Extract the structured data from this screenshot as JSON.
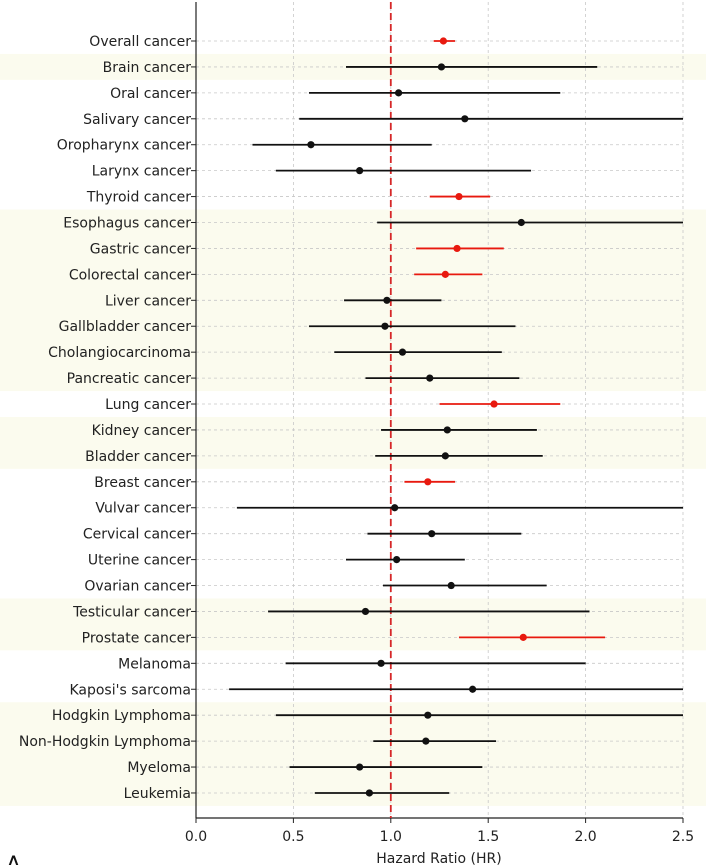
{
  "chart_data": {
    "type": "forest",
    "xlabel": "Hazard Ratio (HR)",
    "panel_label": "A",
    "xlim": [
      0.0,
      2.5
    ],
    "xticks": [
      0.0,
      0.5,
      1.0,
      1.5,
      2.0,
      2.5
    ],
    "xtick_labels": [
      "0.0",
      "0.5",
      "1.0",
      "1.5",
      "2.0",
      "2.5"
    ],
    "reference_line": 1.0,
    "grid": true,
    "colors": {
      "significant": "#e8190f",
      "nonsignificant": "#111111",
      "reference": "#d62728",
      "band": "#fbfbee",
      "grid": "#c8c8c8"
    },
    "rows": [
      {
        "label": "Overall cancer",
        "hr": 1.27,
        "lo": 1.22,
        "hi": 1.33,
        "significant": true
      },
      {
        "label": "Brain cancer",
        "hr": 1.26,
        "lo": 0.77,
        "hi": 2.06,
        "significant": false
      },
      {
        "label": "Oral cancer",
        "hr": 1.04,
        "lo": 0.58,
        "hi": 1.87,
        "significant": false
      },
      {
        "label": "Salivary cancer",
        "hr": 1.38,
        "lo": 0.53,
        "hi": 2.5,
        "significant": false
      },
      {
        "label": "Oropharynx cancer",
        "hr": 0.59,
        "lo": 0.29,
        "hi": 1.21,
        "significant": false
      },
      {
        "label": "Larynx cancer",
        "hr": 0.84,
        "lo": 0.41,
        "hi": 1.72,
        "significant": false
      },
      {
        "label": "Thyroid cancer",
        "hr": 1.35,
        "lo": 1.2,
        "hi": 1.51,
        "significant": true
      },
      {
        "label": "Esophagus cancer",
        "hr": 1.67,
        "lo": 0.93,
        "hi": 2.5,
        "significant": false
      },
      {
        "label": "Gastric cancer",
        "hr": 1.34,
        "lo": 1.13,
        "hi": 1.58,
        "significant": true
      },
      {
        "label": "Colorectal cancer",
        "hr": 1.28,
        "lo": 1.12,
        "hi": 1.47,
        "significant": true
      },
      {
        "label": "Liver cancer",
        "hr": 0.98,
        "lo": 0.76,
        "hi": 1.26,
        "significant": false
      },
      {
        "label": "Gallbladder cancer",
        "hr": 0.97,
        "lo": 0.58,
        "hi": 1.64,
        "significant": false
      },
      {
        "label": "Cholangiocarcinoma",
        "hr": 1.06,
        "lo": 0.71,
        "hi": 1.57,
        "significant": false
      },
      {
        "label": "Pancreatic cancer",
        "hr": 1.2,
        "lo": 0.87,
        "hi": 1.66,
        "significant": false
      },
      {
        "label": "Lung cancer",
        "hr": 1.53,
        "lo": 1.25,
        "hi": 1.87,
        "significant": true
      },
      {
        "label": "Kidney cancer",
        "hr": 1.29,
        "lo": 0.95,
        "hi": 1.75,
        "significant": false
      },
      {
        "label": "Bladder cancer",
        "hr": 1.28,
        "lo": 0.92,
        "hi": 1.78,
        "significant": false
      },
      {
        "label": "Breast cancer",
        "hr": 1.19,
        "lo": 1.07,
        "hi": 1.33,
        "significant": true
      },
      {
        "label": "Vulvar cancer",
        "hr": 1.02,
        "lo": 0.21,
        "hi": 2.5,
        "significant": false
      },
      {
        "label": "Cervical cancer",
        "hr": 1.21,
        "lo": 0.88,
        "hi": 1.67,
        "significant": false
      },
      {
        "label": "Uterine cancer",
        "hr": 1.03,
        "lo": 0.77,
        "hi": 1.38,
        "significant": false
      },
      {
        "label": "Ovarian cancer",
        "hr": 1.31,
        "lo": 0.96,
        "hi": 1.8,
        "significant": false
      },
      {
        "label": "Testicular cancer",
        "hr": 0.87,
        "lo": 0.37,
        "hi": 2.02,
        "significant": false
      },
      {
        "label": "Prostate cancer",
        "hr": 1.68,
        "lo": 1.35,
        "hi": 2.1,
        "significant": true
      },
      {
        "label": "Melanoma",
        "hr": 0.95,
        "lo": 0.46,
        "hi": 2.0,
        "significant": false
      },
      {
        "label": "Kaposi's sarcoma",
        "hr": 1.42,
        "lo": 0.17,
        "hi": 2.5,
        "significant": false
      },
      {
        "label": "Hodgkin Lymphoma",
        "hr": 1.19,
        "lo": 0.41,
        "hi": 2.5,
        "significant": false
      },
      {
        "label": "Non-Hodgkin Lymphoma",
        "hr": 1.18,
        "lo": 0.91,
        "hi": 1.54,
        "significant": false
      },
      {
        "label": "Myeloma",
        "hr": 0.84,
        "lo": 0.48,
        "hi": 1.47,
        "significant": false
      },
      {
        "label": "Leukemia",
        "hr": 0.89,
        "lo": 0.61,
        "hi": 1.3,
        "significant": false
      }
    ],
    "bands": [
      {
        "from": "Brain cancer",
        "to": "Brain cancer"
      },
      {
        "from": "Esophagus cancer",
        "to": "Pancreatic cancer"
      },
      {
        "from": "Kidney cancer",
        "to": "Bladder cancer"
      },
      {
        "from": "Testicular cancer",
        "to": "Prostate cancer"
      },
      {
        "from": "Hodgkin Lymphoma",
        "to": "Leukemia"
      }
    ]
  }
}
